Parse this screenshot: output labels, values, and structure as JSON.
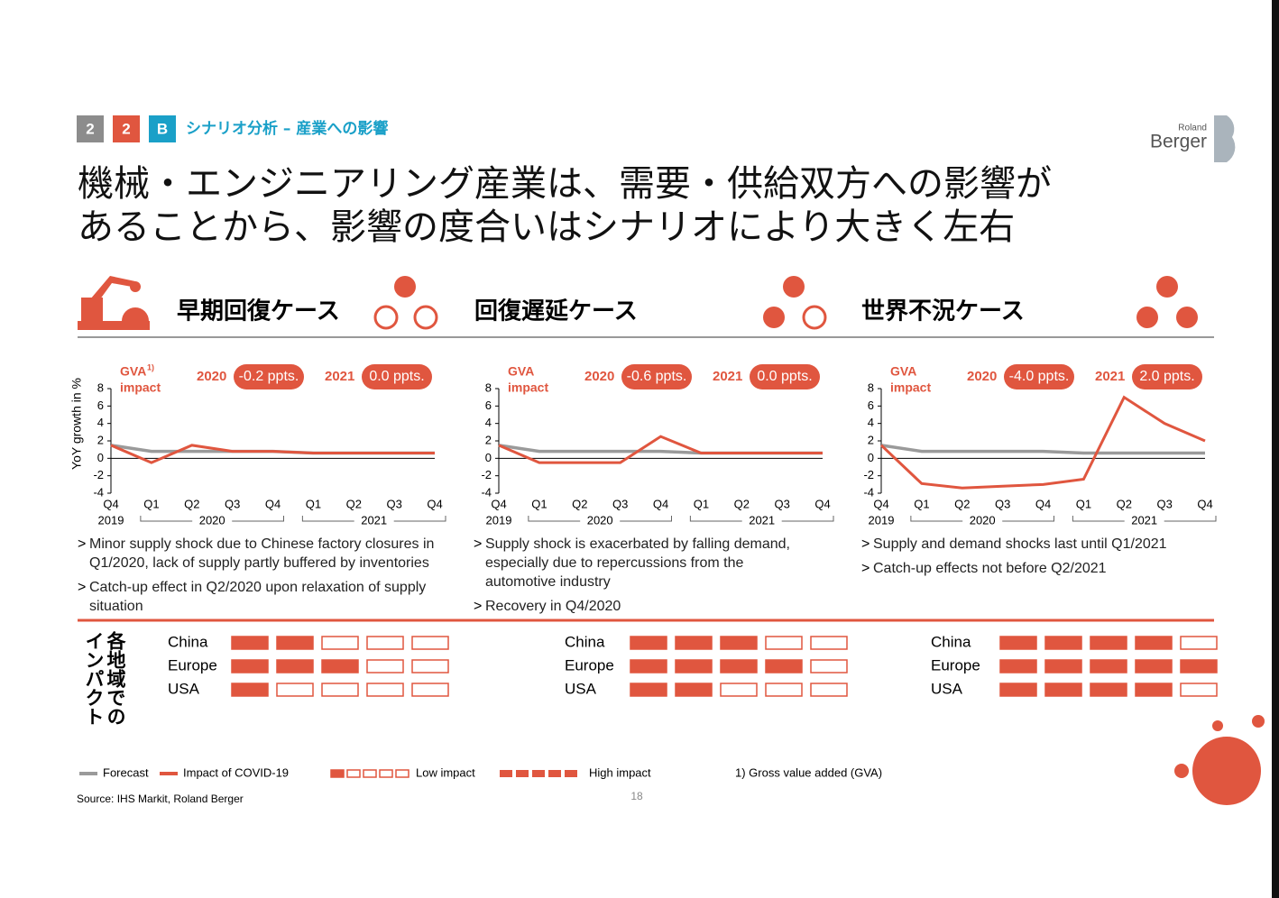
{
  "header": {
    "badges": [
      "2",
      "2",
      "B"
    ],
    "section": "シナリオ分析 – 産業への影響",
    "logo": [
      "Roland",
      "Berger"
    ],
    "title": [
      "機械・エンジニアリング産業は、需要・供給双方への影響が",
      "あることから、影響の度合いはシナリオにより大きく左右"
    ]
  },
  "scenarios": [
    "早期回復ケース",
    "回復遅延ケース",
    "世界不況ケース"
  ],
  "chart_data": [
    {
      "type": "line",
      "y_label": "YoY growth in %",
      "gva": "GVA",
      "gva_sup": "1)",
      "impact": "impact",
      "annotations": [
        {
          "year": "2020",
          "value": "-0.2 ppts."
        },
        {
          "year": "2021",
          "value": "0.0 ppts."
        }
      ],
      "categories": [
        "Q4",
        "Q1",
        "Q2",
        "Q3",
        "Q4",
        "Q1",
        "Q2",
        "Q3",
        "Q4"
      ],
      "x_groups": [
        "2019",
        "2020",
        "2021"
      ],
      "ylim": [
        -4,
        8
      ],
      "yticks": [
        -4,
        -2,
        0,
        2,
        4,
        6,
        8
      ],
      "series": [
        {
          "name": "Forecast",
          "color": "#9a9a9a",
          "values": [
            1.5,
            0.8,
            0.8,
            0.8,
            0.8,
            0.6,
            0.6,
            0.6,
            0.6
          ]
        },
        {
          "name": "Impact of COVID-19",
          "color": "#e0563f",
          "values": [
            1.5,
            -0.5,
            1.5,
            0.8,
            0.8,
            0.6,
            0.6,
            0.6,
            0.6
          ]
        }
      ]
    },
    {
      "type": "line",
      "gva": "GVA",
      "impact": "impact",
      "annotations": [
        {
          "year": "2020",
          "value": "-0.6 ppts."
        },
        {
          "year": "2021",
          "value": "0.0 ppts."
        }
      ],
      "categories": [
        "Q4",
        "Q1",
        "Q2",
        "Q3",
        "Q4",
        "Q1",
        "Q2",
        "Q3",
        "Q4"
      ],
      "x_groups": [
        "2019",
        "2020",
        "2021"
      ],
      "ylim": [
        -4,
        8
      ],
      "yticks": [
        -4,
        -2,
        0,
        2,
        4,
        6,
        8
      ],
      "series": [
        {
          "color": "#9a9a9a",
          "values": [
            1.5,
            0.8,
            0.8,
            0.8,
            0.8,
            0.6,
            0.6,
            0.6,
            0.6
          ]
        },
        {
          "color": "#e0563f",
          "values": [
            1.5,
            -0.5,
            -0.5,
            -0.5,
            2.5,
            0.6,
            0.6,
            0.6,
            0.6
          ]
        }
      ]
    },
    {
      "type": "line",
      "gva": "GVA",
      "impact": "impact",
      "annotations": [
        {
          "year": "2020",
          "value": "-4.0 ppts."
        },
        {
          "year": "2021",
          "value": "2.0 ppts."
        }
      ],
      "categories": [
        "Q4",
        "Q1",
        "Q2",
        "Q3",
        "Q4",
        "Q1",
        "Q2",
        "Q3",
        "Q4"
      ],
      "x_groups": [
        "2019",
        "2020",
        "2021"
      ],
      "ylim": [
        -4,
        8
      ],
      "yticks": [
        -4,
        -2,
        0,
        2,
        4,
        6,
        8
      ],
      "series": [
        {
          "color": "#9a9a9a",
          "values": [
            1.5,
            0.8,
            0.8,
            0.8,
            0.8,
            0.6,
            0.6,
            0.6,
            0.6
          ]
        },
        {
          "color": "#e0563f",
          "values": [
            1.5,
            -2.9,
            -3.4,
            -3.2,
            -3.0,
            -2.4,
            7.0,
            4.0,
            2.0
          ]
        }
      ]
    }
  ],
  "bullets": [
    [
      [
        "Minor supply shock due to Chinese factory closures in",
        "Q1/2020, lack of supply partly buffered by inventories"
      ],
      [
        "Catch-up effect in Q2/2020 upon relaxation of supply",
        "situation"
      ]
    ],
    [
      [
        "Supply shock is exacerbated by falling demand,",
        "especially due to repercussions from the",
        "automotive industry"
      ],
      [
        "Recovery in Q4/2020"
      ]
    ],
    [
      [
        "Supply and demand shocks last until Q1/2021"
      ],
      [
        "Catch-up effects not before Q2/2021"
      ]
    ]
  ],
  "regions": {
    "title": [
      "各地域での",
      "インパクト"
    ],
    "columns": [
      [
        {
          "name": "China",
          "level": 2
        },
        {
          "name": "Europe",
          "level": 3
        },
        {
          "name": "USA",
          "level": 1
        }
      ],
      [
        {
          "name": "China",
          "level": 3
        },
        {
          "name": "Europe",
          "level": 4
        },
        {
          "name": "USA",
          "level": 2
        }
      ],
      [
        {
          "name": "China",
          "level": 4
        },
        {
          "name": "Europe",
          "level": 5
        },
        {
          "name": "USA",
          "level": 4
        }
      ]
    ]
  },
  "footer": {
    "low": "Low impact",
    "high": "High impact",
    "note": "1) Gross value added (GVA)",
    "source": "Source: IHS Markit, Roland Berger",
    "page": "18"
  }
}
